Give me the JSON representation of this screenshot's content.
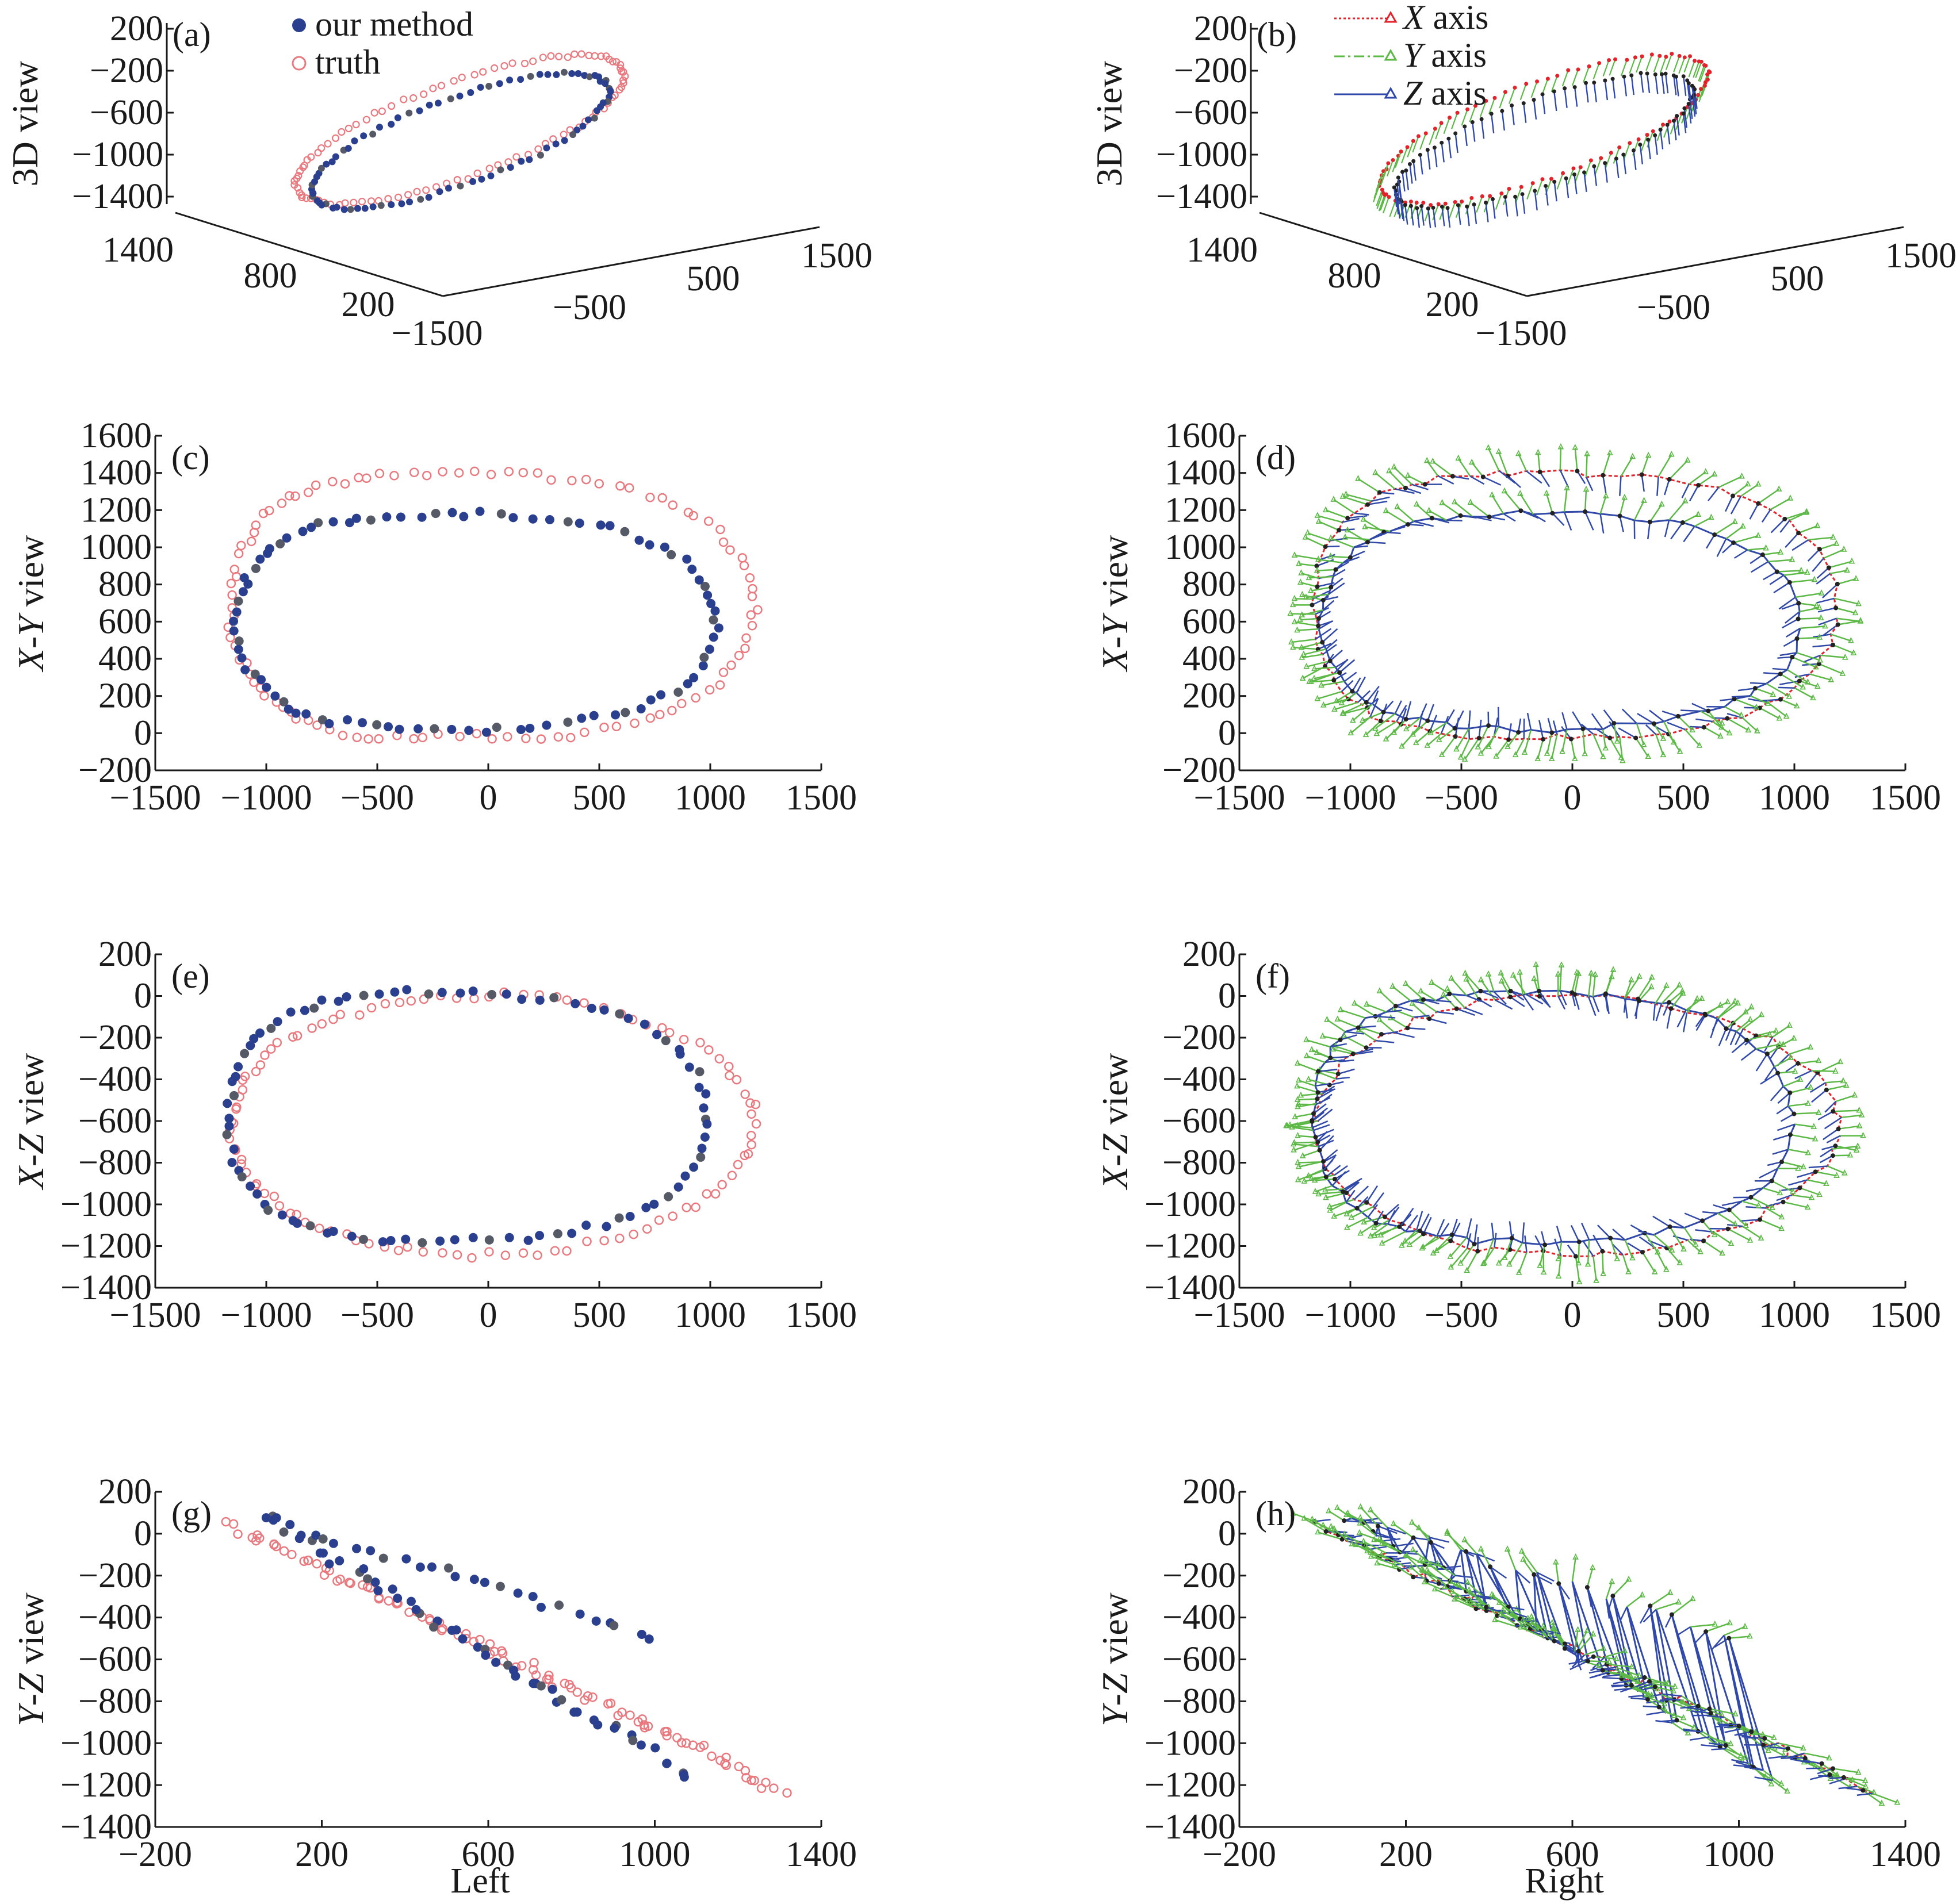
{
  "colors": {
    "our_method": "#2b3f8f",
    "truth": "#e8797f",
    "x_axis": "#e2232b",
    "y_axis": "#5cb946",
    "z_axis": "#3048a8",
    "axis": "#1a1a1a"
  },
  "legends": {
    "left": [
      {
        "label": "our method",
        "marker": "filled-circle",
        "color": "#2b3f8f"
      },
      {
        "label": "truth",
        "marker": "open-circle",
        "color": "#e8797f"
      }
    ],
    "right": [
      {
        "prefix": "X",
        "label": " axis",
        "line": "dotted",
        "color": "#e2232b"
      },
      {
        "prefix": "Y",
        "label": " axis",
        "line": "dash-dot",
        "color": "#5cb946"
      },
      {
        "prefix": "Z",
        "label": " axis",
        "line": "solid",
        "color": "#3048a8"
      }
    ]
  },
  "columns": {
    "left": "Left",
    "right": "Right"
  },
  "chart_data": [
    {
      "panel": "(a)",
      "type": "scatter",
      "view": "3d",
      "ylabel": "3D view",
      "z_ticks": [
        "200",
        "−200",
        "−600",
        "−1000",
        "−1400"
      ],
      "depth_ticks": [
        "1400",
        "800",
        "200"
      ],
      "x_ticks": [
        "−1500",
        "−500",
        "500",
        "1500"
      ]
    },
    {
      "panel": "(b)",
      "type": "line",
      "view": "3d",
      "ylabel": "3D view",
      "z_ticks": [
        "200",
        "−200",
        "−600",
        "−1000",
        "−1400"
      ],
      "depth_ticks": [
        "1400",
        "800",
        "200"
      ],
      "x_ticks": [
        "−1500",
        "−500",
        "500",
        "1500"
      ]
    },
    {
      "panel": "(c)",
      "type": "scatter",
      "view": "xy",
      "ylabel_i": "X",
      "ylabel_sep": "-",
      "ylabel_i2": "Y",
      "ylabel_rest": " view",
      "xlim": [
        -1500,
        1500
      ],
      "ylim": [
        -200,
        1600
      ],
      "xticks": [
        "−1500",
        "−1000",
        "−500",
        "0",
        "500",
        "1000",
        "1500"
      ],
      "yticks": [
        "1600",
        "1400",
        "1200",
        "1000",
        "800",
        "600",
        "400",
        "200",
        "0",
        "−200"
      ]
    },
    {
      "panel": "(d)",
      "type": "line",
      "view": "xy",
      "ylabel_i": "X",
      "ylabel_sep": "-",
      "ylabel_i2": "Y",
      "ylabel_rest": " view",
      "xlim": [
        -1500,
        1500
      ],
      "ylim": [
        -200,
        1600
      ],
      "xticks": [
        "−1500",
        "−1000",
        "−500",
        "0",
        "500",
        "1000",
        "1500"
      ],
      "yticks": [
        "1600",
        "1400",
        "1200",
        "1000",
        "800",
        "600",
        "400",
        "200",
        "0",
        "−200"
      ]
    },
    {
      "panel": "(e)",
      "type": "scatter",
      "view": "xz",
      "ylabel_i": "X",
      "ylabel_sep": "-",
      "ylabel_i2": "Z",
      "ylabel_rest": " view",
      "xlim": [
        -1500,
        1500
      ],
      "ylim": [
        -1400,
        200
      ],
      "xticks": [
        "−1500",
        "−1000",
        "−500",
        "0",
        "500",
        "1000",
        "1500"
      ],
      "yticks": [
        "200",
        "0",
        "−200",
        "−400",
        "−600",
        "−800",
        "−1000",
        "−1200",
        "−1400"
      ]
    },
    {
      "panel": "(f)",
      "type": "line",
      "view": "xz",
      "ylabel_i": "X",
      "ylabel_sep": "-",
      "ylabel_i2": "Z",
      "ylabel_rest": " view",
      "xlim": [
        -1500,
        1500
      ],
      "ylim": [
        -1400,
        200
      ],
      "xticks": [
        "−1500",
        "−1000",
        "−500",
        "0",
        "500",
        "1000",
        "1500"
      ],
      "yticks": [
        "200",
        "0",
        "−200",
        "−400",
        "−600",
        "−800",
        "−1000",
        "−1200",
        "−1400"
      ]
    },
    {
      "panel": "(g)",
      "type": "scatter",
      "view": "yz",
      "ylabel_i": "Y",
      "ylabel_sep": "-",
      "ylabel_i2": "Z",
      "ylabel_rest": " view",
      "xlim": [
        -200,
        1600
      ],
      "ylim": [
        -1400,
        200
      ],
      "xticks": [
        "−200",
        "200",
        "600",
        "1000",
        "1400"
      ],
      "yticks": [
        "200",
        "0",
        "−200",
        "−400",
        "−600",
        "−800",
        "−1000",
        "−1200",
        "−1400"
      ]
    },
    {
      "panel": "(h)",
      "type": "line",
      "view": "yz",
      "ylabel_i": "Y",
      "ylabel_sep": "-",
      "ylabel_i2": "Z",
      "ylabel_rest": " view",
      "xlim": [
        -200,
        1600
      ],
      "ylim": [
        -1400,
        200
      ],
      "xticks": [
        "−200",
        "200",
        "600",
        "1000",
        "1400"
      ],
      "yticks": [
        "200",
        "0",
        "−200",
        "−400",
        "−600",
        "−800",
        "−1000",
        "−1200",
        "−1400"
      ]
    }
  ]
}
